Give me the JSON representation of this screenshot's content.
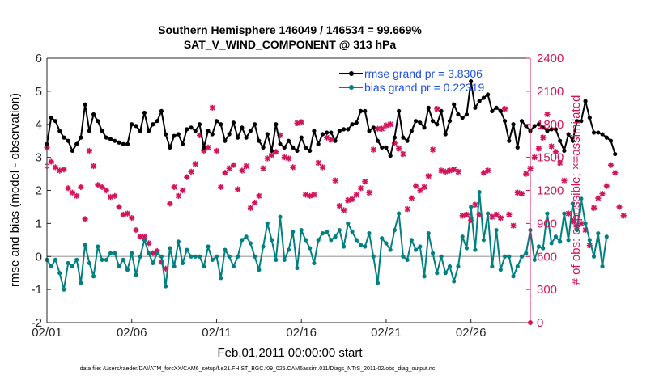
{
  "chart_data": {
    "type": "line",
    "title": "Southern Hemisphere 146049 / 146534 = 99.669%",
    "subtitle": "SAT_V_WIND_COMPONENT @ 313 hPa",
    "xlabel": "Feb.01,2011 00:00:00 start",
    "ylabel_left": "rmse and bias (model - observation)",
    "ylabel_right": "# of obs: o=possible; ×=assimilated",
    "x_ticks": [
      "02/01",
      "02/06",
      "02/11",
      "02/16",
      "02/21",
      "02/26"
    ],
    "y_left_ticks": [
      "-2",
      "-1",
      "0",
      "1",
      "2",
      "3",
      "4",
      "5",
      "6"
    ],
    "y_right_ticks": [
      "0",
      "300",
      "600",
      "900",
      "1200",
      "1500",
      "1800",
      "2100",
      "2400"
    ],
    "x_range_days": [
      0,
      28.5
    ],
    "ylim_left": [
      -2,
      6
    ],
    "ylim_right": [
      0,
      2400
    ],
    "grid": false,
    "legend_position": "top-right",
    "footnote": "data file: /Users/raeder/DAI/ATM_forcXX/CAM6_setup/f.e21.FHIST_BGC.f09_025.CAM6assim.011/Diags_NTrS_2011-02/obs_diag_output.nc",
    "colors": {
      "rmse": "#000000",
      "bias": "#008080",
      "obs_count": "#d4145a",
      "axis_right": "#d4145a",
      "zero_line": "#b4b4b4",
      "legend_text": "#1e50e6"
    },
    "series": [
      {
        "name": "rmse grand pr = 3.8306",
        "axis": "left",
        "values": [
          3.4,
          4.2,
          4.1,
          3.8,
          3.6,
          3.5,
          3.2,
          3.4,
          3.6,
          4.6,
          3.8,
          4.3,
          4.1,
          3.8,
          3.6,
          3.55,
          3.5,
          3.45,
          3.4,
          3.4,
          4.0,
          3.95,
          3.8,
          4.35,
          3.8,
          4.0,
          4.1,
          4.4,
          3.7,
          3.3,
          3.65,
          3.7,
          3.4,
          3.85,
          3.9,
          3.8,
          4.0,
          3.3,
          3.8,
          3.7,
          4.1,
          4.0,
          3.5,
          3.7,
          4.05,
          3.6,
          3.9,
          3.6,
          3.8,
          4.0,
          3.5,
          3.3,
          3.7,
          3.2,
          4.0,
          3.4,
          3.3,
          3.5,
          3.3,
          3.2,
          3.6,
          3.3,
          3.2,
          3.8,
          3.4,
          3.7,
          3.75,
          3.75,
          3.5,
          3.8,
          3.85,
          3.85,
          4.0,
          4.05,
          4.4,
          4.4,
          3.8,
          3.9,
          3.5,
          3.3,
          3.3,
          3.05,
          3.6,
          4.4,
          3.6,
          3.5,
          3.8,
          4.1,
          4.05,
          3.9,
          4.5,
          4.1,
          4.0,
          4.4,
          3.7,
          4.1,
          4.6,
          4.3,
          4.2,
          4.3,
          5.3,
          4.5,
          4.7,
          4.8,
          4.9,
          4.4,
          4.5,
          4.4,
          4.1,
          3.5,
          4.0,
          3.3,
          4.1,
          3.95,
          3.8,
          3.95,
          4.0,
          3.9,
          3.8,
          3.85,
          3.85,
          3.5,
          3.2,
          3.7,
          3.5,
          4.1,
          4.1,
          4.7,
          4.2,
          3.75,
          3.75,
          3.7,
          3.6,
          3.5,
          3.1
        ]
      },
      {
        "name": "bias grand pr = 0.22319",
        "axis": "left",
        "values": [
          -0.1,
          -0.3,
          -0.1,
          -0.5,
          -1.0,
          -0.2,
          -0.3,
          -0.1,
          -0.8,
          0.35,
          -0.2,
          -0.6,
          0.3,
          -0.1,
          -0.1,
          0.1,
          0.1,
          -0.3,
          -0.1,
          -0.4,
          0.1,
          -0.55,
          0.0,
          0.5,
          0.1,
          -0.2,
          0.1,
          0.0,
          -0.9,
          0.25,
          -0.3,
          0.45,
          -0.2,
          0.2,
          0.0,
          0.0,
          0.0,
          -0.3,
          0.3,
          -0.1,
          0.0,
          -0.65,
          0.2,
          0.0,
          -0.3,
          0.0,
          0.5,
          0.6,
          0.4,
          0.0,
          -0.4,
          0.3,
          1.0,
          0.5,
          -0.1,
          1.2,
          -0.1,
          0.2,
          0.75,
          -0.35,
          0.8,
          0.5,
          0.25,
          -0.2,
          0.5,
          0.7,
          0.75,
          0.5,
          0.6,
          0.8,
          0.3,
          1.0,
          0.75,
          0.5,
          0.35,
          0.3,
          0.7,
          0.0,
          -0.8,
          0.55,
          0.4,
          0.2,
          0.8,
          1.3,
          0.0,
          -0.1,
          0.5,
          0.2,
          0.3,
          -0.6,
          0.7,
          0.1,
          -0.5,
          0.0,
          -0.5,
          -0.3,
          -0.75,
          -0.3,
          0.6,
          0.25,
          1.5,
          0.2,
          1.95,
          0.5,
          1.3,
          -0.3,
          0.8,
          -0.4,
          0.0,
          0.0,
          -0.6,
          -0.3,
          0.0,
          0.1,
          0.8,
          -0.1,
          0.3,
          0.25,
          1.3,
          0.4,
          0.6,
          0.45,
          1.3,
          0.5,
          1.6,
          0.8,
          1.75,
          1.0,
          0.5,
          0.0,
          0.7,
          -0.3,
          0.6
        ]
      },
      {
        "name": "# of obs assimilated",
        "axis": "right",
        "marker": "x",
        "values": [
          1590,
          1460,
          1410,
          1380,
          1390,
          1220,
          1180,
          1150,
          1230,
          940,
          1560,
          1420,
          1250,
          1230,
          1200,
          1140,
          1150,
          1050,
          980,
          990,
          950,
          840,
          780,
          780,
          720,
          630,
          650,
          550,
          490,
          1080,
          1230,
          1150,
          1200,
          1320,
          1370,
          1440,
          1700,
          1560,
          1590,
          1950,
          1560,
          1230,
          1360,
          1400,
          1430,
          1210,
          1380,
          1420,
          1040,
          1090,
          1150,
          1400,
          1490,
          1520,
          1550,
          1700,
          1500,
          1490,
          1410,
          1810,
          1820,
          1160,
          1150,
          1160,
          1450,
          1410,
          1680,
          1660,
          1290,
          1060,
          1020,
          1110,
          1120,
          1160,
          1220,
          1280,
          1180,
          1570,
          1760,
          1760,
          1790,
          1800,
          1630,
          1580,
          1530,
          1030,
          1130,
          1240,
          1200,
          1230,
          1330,
          1570,
          1940,
          1380,
          1370,
          1380,
          1390,
          1370,
          970,
          980,
          930,
          1070,
          980,
          1360,
          1380,
          960,
          980,
          950,
          1940,
          980,
          880,
          1180,
          1170,
          1350,
          1400,
          1500,
          1580,
          1680,
          1890,
          1600,
          1550,
          1450,
          1290,
          990,
          920,
          870,
          900,
          840,
          700,
          1040,
          1130,
          1170,
          1240,
          1430,
          1360,
          1050,
          970
        ]
      },
      {
        "name": "# of obs possible",
        "axis": "right",
        "marker": "o",
        "values": [
          1420
        ]
      }
    ]
  }
}
